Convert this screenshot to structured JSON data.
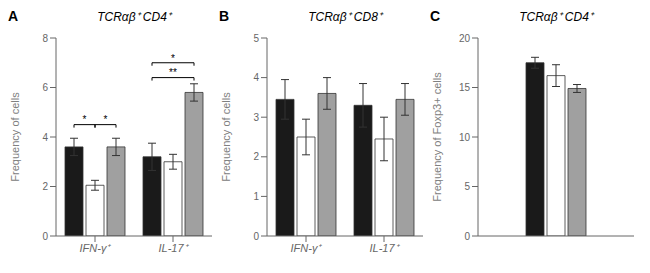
{
  "chart_data": [
    {
      "type": "bar",
      "panel_label": "A",
      "title": "TCRαβ⁺ CD4⁺",
      "ylabel": "Frequency of cells",
      "categories": [
        "IFN-γ⁺",
        "IL-17⁺"
      ],
      "series": [
        {
          "color": "#1a1a1a",
          "values": [
            3.6,
            3.2
          ],
          "errors": [
            0.35,
            0.55
          ]
        },
        {
          "color": "#ffffff",
          "values": [
            2.05,
            3.0
          ],
          "errors": [
            0.2,
            0.3
          ]
        },
        {
          "color": "#a0a0a0",
          "values": [
            3.6,
            5.8
          ],
          "errors": [
            0.35,
            0.35
          ]
        }
      ],
      "ylim": [
        0,
        8
      ],
      "yticks": [
        0,
        2,
        4,
        6,
        8
      ],
      "grid": false,
      "annotations": [
        {
          "category": "IFN-γ⁺",
          "from": 0,
          "to": 1,
          "y": 4.5,
          "text": "*"
        },
        {
          "category": "IFN-γ⁺",
          "from": 1,
          "to": 2,
          "y": 4.5,
          "text": "*"
        },
        {
          "category": "IL-17⁺",
          "from": 0,
          "to": 2,
          "y": 7.0,
          "text": "*"
        },
        {
          "category": "IL-17⁺",
          "from": 0,
          "to": 2,
          "y": 6.4,
          "text": "**"
        }
      ]
    },
    {
      "type": "bar",
      "panel_label": "B",
      "title": "TCRαβ⁺ CD8⁺",
      "ylabel": "Frequency of cells",
      "categories": [
        "IFN-γ⁺",
        "IL-17⁺"
      ],
      "series": [
        {
          "color": "#1a1a1a",
          "values": [
            3.45,
            3.3
          ],
          "errors": [
            0.5,
            0.55
          ]
        },
        {
          "color": "#ffffff",
          "values": [
            2.5,
            2.45
          ],
          "errors": [
            0.45,
            0.55
          ]
        },
        {
          "color": "#a0a0a0",
          "values": [
            3.6,
            3.45
          ],
          "errors": [
            0.4,
            0.4
          ]
        }
      ],
      "ylim": [
        0,
        5
      ],
      "yticks": [
        0,
        1,
        2,
        3,
        4,
        5
      ],
      "grid": false
    },
    {
      "type": "bar",
      "panel_label": "C",
      "title": "TCRαβ⁺ CD4⁺",
      "ylabel": "Frequency of Foxp3+ cells",
      "categories": [
        null
      ],
      "series": [
        {
          "color": "#1a1a1a",
          "values": [
            17.5
          ],
          "errors": [
            0.55
          ]
        },
        {
          "color": "#ffffff",
          "values": [
            16.2
          ],
          "errors": [
            1.1
          ]
        },
        {
          "color": "#a0a0a0",
          "values": [
            14.9
          ],
          "errors": [
            0.4
          ]
        }
      ],
      "ylim": [
        0,
        20
      ],
      "yticks": [
        0,
        5,
        10,
        15,
        20
      ],
      "grid": false,
      "tick_labels": "y"
    }
  ]
}
